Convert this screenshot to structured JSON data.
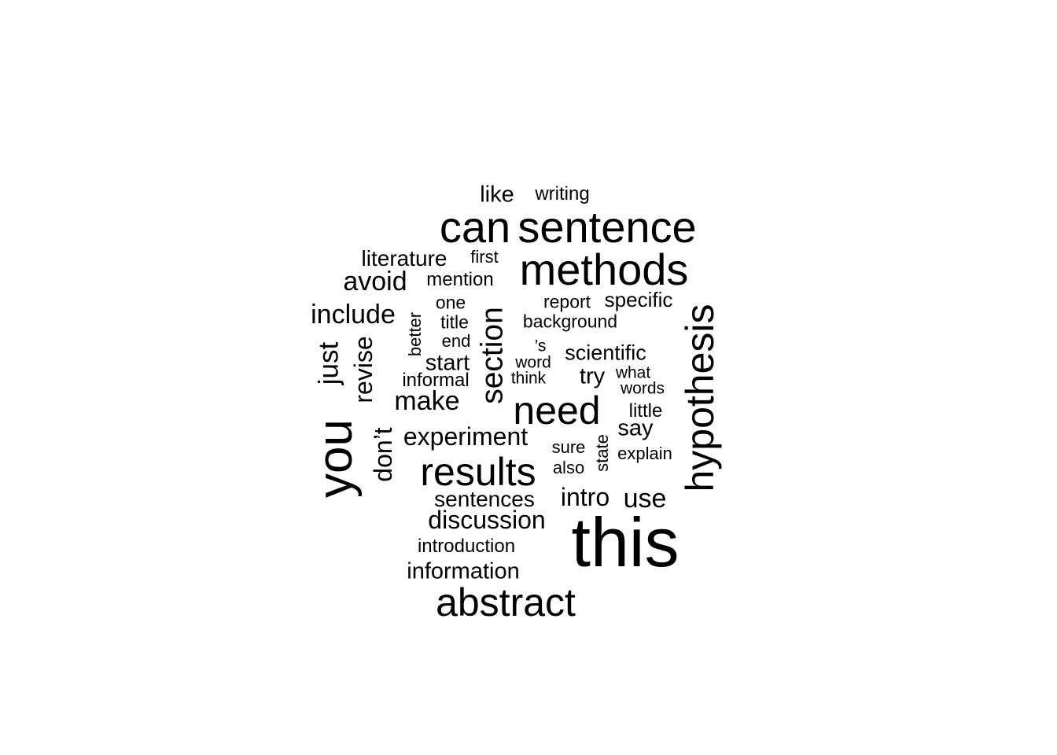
{
  "background_color": "#ffffff",
  "text_color": "#000000",
  "words": [
    {
      "text": "this",
      "weight": 1.0,
      "rotated": false
    },
    {
      "text": "you",
      "weight": 0.86,
      "rotated": true
    },
    {
      "text": "sentence",
      "weight": 0.66,
      "rotated": false
    },
    {
      "text": "can",
      "weight": 0.66,
      "rotated": false
    },
    {
      "text": "methods",
      "weight": 0.66,
      "rotated": false
    },
    {
      "text": "hypothesis",
      "weight": 0.6,
      "rotated": true
    },
    {
      "text": "results",
      "weight": 0.6,
      "rotated": false
    },
    {
      "text": "abstract",
      "weight": 0.6,
      "rotated": false
    },
    {
      "text": "need",
      "weight": 0.6,
      "rotated": false
    },
    {
      "text": "section",
      "weight": 0.46,
      "rotated": true
    },
    {
      "text": "just",
      "weight": 0.4,
      "rotated": true
    },
    {
      "text": "revise",
      "weight": 0.4,
      "rotated": true
    },
    {
      "text": "don’t",
      "weight": 0.4,
      "rotated": true
    },
    {
      "text": "make",
      "weight": 0.4,
      "rotated": false
    },
    {
      "text": "experiment",
      "weight": 0.4,
      "rotated": false
    },
    {
      "text": "discussion",
      "weight": 0.4,
      "rotated": false
    },
    {
      "text": "avoid",
      "weight": 0.4,
      "rotated": false
    },
    {
      "text": "include",
      "weight": 0.4,
      "rotated": false
    },
    {
      "text": "use",
      "weight": 0.4,
      "rotated": false
    },
    {
      "text": "intro",
      "weight": 0.4,
      "rotated": false
    },
    {
      "text": "information",
      "weight": 0.34,
      "rotated": false
    },
    {
      "text": "sentences",
      "weight": 0.34,
      "rotated": false
    },
    {
      "text": "literature",
      "weight": 0.34,
      "rotated": false
    },
    {
      "text": "like",
      "weight": 0.34,
      "rotated": false
    },
    {
      "text": "say",
      "weight": 0.34,
      "rotated": false
    },
    {
      "text": "try",
      "weight": 0.34,
      "rotated": false
    },
    {
      "text": "scientific",
      "weight": 0.34,
      "rotated": false
    },
    {
      "text": "start",
      "weight": 0.34,
      "rotated": false
    },
    {
      "text": "specific",
      "weight": 0.3,
      "rotated": false
    },
    {
      "text": "introduction",
      "weight": 0.28,
      "rotated": false
    },
    {
      "text": "mention",
      "weight": 0.28,
      "rotated": false
    },
    {
      "text": "writing",
      "weight": 0.28,
      "rotated": false
    },
    {
      "text": "little",
      "weight": 0.28,
      "rotated": false
    },
    {
      "text": "background",
      "weight": 0.28,
      "rotated": false
    },
    {
      "text": "informal",
      "weight": 0.28,
      "rotated": false
    },
    {
      "text": "one",
      "weight": 0.28,
      "rotated": false
    },
    {
      "text": "title",
      "weight": 0.28,
      "rotated": false
    },
    {
      "text": "report",
      "weight": 0.28,
      "rotated": false
    },
    {
      "text": "first",
      "weight": 0.26,
      "rotated": false
    },
    {
      "text": "end",
      "weight": 0.26,
      "rotated": false
    },
    {
      "text": "word",
      "weight": 0.26,
      "rotated": false
    },
    {
      "text": "think",
      "weight": 0.26,
      "rotated": false
    },
    {
      "text": "what",
      "weight": 0.26,
      "rotated": false
    },
    {
      "text": "words",
      "weight": 0.26,
      "rotated": false
    },
    {
      "text": "explain",
      "weight": 0.26,
      "rotated": false
    },
    {
      "text": "sure",
      "weight": 0.26,
      "rotated": false
    },
    {
      "text": "also",
      "weight": 0.26,
      "rotated": false
    },
    {
      "text": "’s",
      "weight": 0.26,
      "rotated": false
    },
    {
      "text": "better",
      "weight": 0.26,
      "rotated": true
    },
    {
      "text": "state",
      "weight": 0.26,
      "rotated": true
    }
  ]
}
